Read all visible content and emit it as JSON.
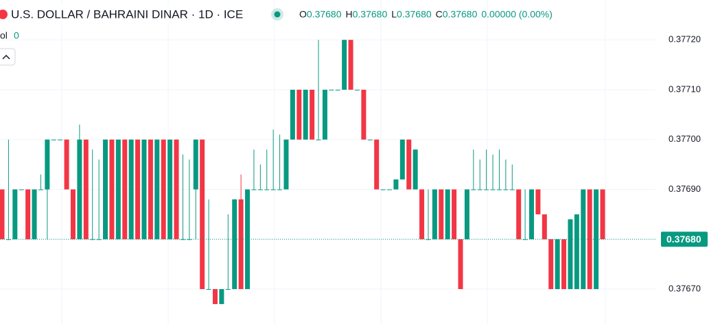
{
  "chart_data": {
    "type": "candlestick",
    "title": "U.S. DOLLAR / BAHRAINI DINAR · 1D · ICE",
    "ohlc_legend": [
      {
        "key": "O",
        "value": "0.37680"
      },
      {
        "key": "H",
        "value": "0.37680"
      },
      {
        "key": "L",
        "value": "0.37680"
      },
      {
        "key": "C",
        "value": "0.37680"
      }
    ],
    "change": "0.00000 (0.00%)",
    "volume_label": "ol",
    "volume_value": "0",
    "up_color": "#089981",
    "down_color": "#f23645",
    "ylim": [
      0.37663,
      0.37728
    ],
    "yticks": [
      {
        "value": 0.3767,
        "label": "0.37670"
      },
      {
        "value": 0.3768,
        "label": "0.37680"
      },
      {
        "value": 0.3769,
        "label": "0.37690"
      },
      {
        "value": 0.377,
        "label": "0.37700"
      },
      {
        "value": 0.3771,
        "label": "0.37710"
      },
      {
        "value": 0.3772,
        "label": "0.37720"
      }
    ],
    "last_price": {
      "value": 0.3768,
      "label": "0.37680"
    },
    "candles": [
      [
        0.3769,
        0.3769,
        0.3768,
        0.3768
      ],
      [
        0.3768,
        0.377,
        0.3768,
        0.3768
      ],
      [
        0.3768,
        0.3769,
        0.3768,
        0.3769
      ],
      [
        0.3769,
        0.3769,
        0.3769,
        0.3769
      ],
      [
        0.3769,
        0.3769,
        0.3768,
        0.3768
      ],
      [
        0.3768,
        0.3769,
        0.3768,
        0.3769
      ],
      [
        0.3769,
        0.37693,
        0.3769,
        0.3769
      ],
      [
        0.3769,
        0.377,
        0.3768,
        0.377
      ],
      [
        0.377,
        0.377,
        0.377,
        0.377
      ],
      [
        0.377,
        0.377,
        0.377,
        0.377
      ],
      [
        0.377,
        0.377,
        0.3769,
        0.3769
      ],
      [
        0.3769,
        0.3769,
        0.3768,
        0.3768
      ],
      [
        0.3768,
        0.37703,
        0.3768,
        0.377
      ],
      [
        0.377,
        0.377,
        0.3768,
        0.3768
      ],
      [
        0.3768,
        0.37698,
        0.3768,
        0.3768
      ],
      [
        0.3768,
        0.37696,
        0.3768,
        0.3768
      ],
      [
        0.3768,
        0.377,
        0.3768,
        0.377
      ],
      [
        0.377,
        0.377,
        0.3768,
        0.3768
      ],
      [
        0.3768,
        0.377,
        0.3768,
        0.377
      ],
      [
        0.377,
        0.377,
        0.3768,
        0.3768
      ],
      [
        0.3768,
        0.377,
        0.3768,
        0.377
      ],
      [
        0.377,
        0.377,
        0.3768,
        0.3768
      ],
      [
        0.3768,
        0.377,
        0.3768,
        0.377
      ],
      [
        0.377,
        0.377,
        0.3768,
        0.3768
      ],
      [
        0.3768,
        0.377,
        0.3768,
        0.377
      ],
      [
        0.377,
        0.377,
        0.3768,
        0.3768
      ],
      [
        0.3768,
        0.377,
        0.3768,
        0.377
      ],
      [
        0.377,
        0.377,
        0.3768,
        0.3768
      ],
      [
        0.3768,
        0.37697,
        0.3768,
        0.3768
      ],
      [
        0.3768,
        0.37696,
        0.3768,
        0.3768
      ],
      [
        0.3769,
        0.377,
        0.3768,
        0.377
      ],
      [
        0.377,
        0.377,
        0.3767,
        0.3767
      ],
      [
        0.3767,
        0.37688,
        0.3767,
        0.3767
      ],
      [
        0.3767,
        0.3767,
        0.37667,
        0.37667
      ],
      [
        0.37667,
        0.3767,
        0.37667,
        0.3767
      ],
      [
        0.3767,
        0.37685,
        0.3767,
        0.3767
      ],
      [
        0.3767,
        0.37688,
        0.3767,
        0.37688
      ],
      [
        0.37688,
        0.37693,
        0.3767,
        0.3767
      ],
      [
        0.3767,
        0.3769,
        0.3767,
        0.3769
      ],
      [
        0.3769,
        0.37698,
        0.3769,
        0.3769
      ],
      [
        0.3769,
        0.37695,
        0.3769,
        0.3769
      ],
      [
        0.3769,
        0.37698,
        0.3769,
        0.3769
      ],
      [
        0.3769,
        0.37702,
        0.3769,
        0.3769
      ],
      [
        0.3769,
        0.37701,
        0.3769,
        0.3769
      ],
      [
        0.3769,
        0.377,
        0.3769,
        0.377
      ],
      [
        0.377,
        0.3771,
        0.377,
        0.3771
      ],
      [
        0.3771,
        0.3771,
        0.377,
        0.377
      ],
      [
        0.377,
        0.3771,
        0.377,
        0.3771
      ],
      [
        0.3771,
        0.3771,
        0.377,
        0.377
      ],
      [
        0.377,
        0.3772,
        0.377,
        0.377
      ],
      [
        0.377,
        0.3771,
        0.377,
        0.3771
      ],
      [
        0.3771,
        0.3771,
        0.3771,
        0.3771
      ],
      [
        0.3771,
        0.3771,
        0.3771,
        0.3771
      ],
      [
        0.3771,
        0.3772,
        0.3771,
        0.3772
      ],
      [
        0.3772,
        0.3772,
        0.3771,
        0.3771
      ],
      [
        0.3771,
        0.3771,
        0.3771,
        0.3771
      ],
      [
        0.3771,
        0.3771,
        0.377,
        0.377
      ],
      [
        0.377,
        0.377,
        0.377,
        0.377
      ],
      [
        0.377,
        0.377,
        0.3769,
        0.3769
      ],
      [
        0.3769,
        0.3769,
        0.3769,
        0.3769
      ],
      [
        0.3769,
        0.3769,
        0.3769,
        0.3769
      ],
      [
        0.3769,
        0.37692,
        0.3769,
        0.37692
      ],
      [
        0.37692,
        0.377,
        0.37692,
        0.377
      ],
      [
        0.377,
        0.377,
        0.3769,
        0.3769
      ],
      [
        0.3769,
        0.37698,
        0.3769,
        0.37698
      ],
      [
        0.3769,
        0.3769,
        0.3768,
        0.3768
      ],
      [
        0.3768,
        0.3769,
        0.3768,
        0.3768
      ],
      [
        0.3768,
        0.3769,
        0.3768,
        0.3769
      ],
      [
        0.3769,
        0.3769,
        0.3768,
        0.3768
      ],
      [
        0.3768,
        0.3769,
        0.3768,
        0.3769
      ],
      [
        0.3769,
        0.3769,
        0.3768,
        0.3768
      ],
      [
        0.3768,
        0.3768,
        0.3767,
        0.3767
      ],
      [
        0.3768,
        0.3769,
        0.3768,
        0.3769
      ],
      [
        0.3769,
        0.37698,
        0.3769,
        0.3769
      ],
      [
        0.3769,
        0.37696,
        0.3769,
        0.3769
      ],
      [
        0.3769,
        0.37698,
        0.3769,
        0.3769
      ],
      [
        0.3769,
        0.37697,
        0.3769,
        0.3769
      ],
      [
        0.3769,
        0.37698,
        0.3769,
        0.3769
      ],
      [
        0.3769,
        0.37696,
        0.3769,
        0.3769
      ],
      [
        0.3769,
        0.37695,
        0.3769,
        0.3769
      ],
      [
        0.3769,
        0.3769,
        0.3768,
        0.3768
      ],
      [
        0.3768,
        0.3769,
        0.3768,
        0.3768
      ],
      [
        0.3768,
        0.3769,
        0.3768,
        0.3769
      ],
      [
        0.3769,
        0.3769,
        0.37685,
        0.37685
      ],
      [
        0.37685,
        0.37685,
        0.3768,
        0.3768
      ],
      [
        0.3768,
        0.3768,
        0.3767,
        0.3767
      ],
      [
        0.3767,
        0.3768,
        0.3767,
        0.3768
      ],
      [
        0.3768,
        0.3768,
        0.3767,
        0.3767
      ],
      [
        0.3767,
        0.37684,
        0.3767,
        0.37684
      ],
      [
        0.3767,
        0.37685,
        0.3767,
        0.37685
      ],
      [
        0.3767,
        0.3769,
        0.3767,
        0.3769
      ],
      [
        0.3769,
        0.3769,
        0.3767,
        0.3767
      ],
      [
        0.3767,
        0.3769,
        0.3767,
        0.3769
      ],
      [
        0.3769,
        0.3769,
        0.3768,
        0.3768
      ]
    ]
  }
}
